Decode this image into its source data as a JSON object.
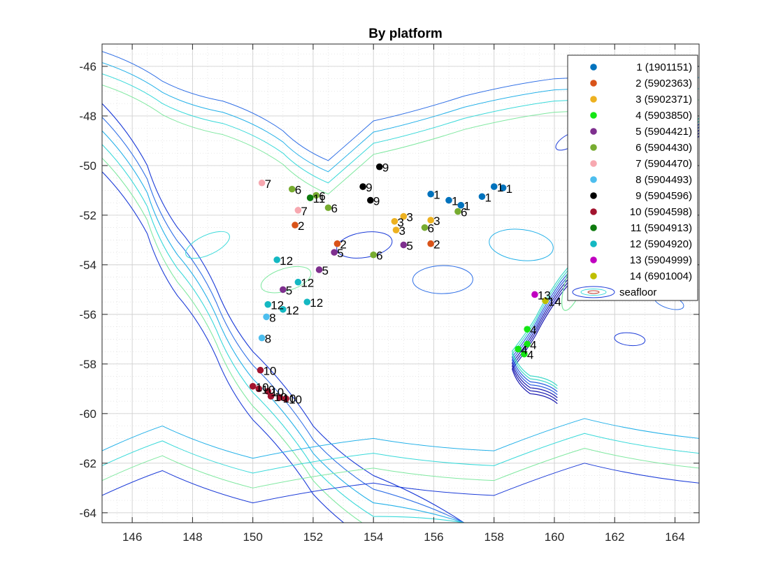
{
  "chart_data": {
    "type": "scatter",
    "title": "By platform",
    "xlabel": "",
    "ylabel": "",
    "xlim": [
      145,
      164.8
    ],
    "ylim": [
      -64.4,
      -45.1
    ],
    "xticks": [
      146,
      148,
      150,
      152,
      154,
      156,
      158,
      160,
      162,
      164
    ],
    "yticks": [
      -46,
      -48,
      -50,
      -52,
      -54,
      -56,
      -58,
      -60,
      -62,
      -64
    ],
    "grid": true,
    "minor_grid": true,
    "legend_position": "top-right",
    "legend_extra": "seafloor",
    "series": [
      {
        "name": "1 (1901151)",
        "label": "1",
        "color": "#0072BD",
        "points": [
          [
            155.9,
            -51.15
          ],
          [
            156.5,
            -51.4
          ],
          [
            156.9,
            -51.6
          ],
          [
            157.6,
            -51.25
          ],
          [
            158.0,
            -50.85
          ],
          [
            158.3,
            -50.9
          ]
        ]
      },
      {
        "name": "2 (5902363)",
        "label": "2",
        "color": "#D95319",
        "points": [
          [
            151.4,
            -52.4
          ],
          [
            152.8,
            -53.15
          ],
          [
            155.9,
            -53.15
          ]
        ]
      },
      {
        "name": "3 (5902371)",
        "label": "3",
        "color": "#EDB120",
        "points": [
          [
            154.7,
            -52.25
          ],
          [
            154.75,
            -52.6
          ],
          [
            155.0,
            -52.05
          ],
          [
            155.9,
            -52.2
          ]
        ]
      },
      {
        "name": "4 (5903850)",
        "label": "4",
        "color": "#14E614",
        "points": [
          [
            159.1,
            -56.6
          ],
          [
            159.1,
            -57.2
          ],
          [
            158.8,
            -57.4
          ],
          [
            159.0,
            -57.6
          ]
        ]
      },
      {
        "name": "5 (5904421)",
        "label": "5",
        "color": "#7E2F8E",
        "points": [
          [
            152.7,
            -53.5
          ],
          [
            155.0,
            -53.2
          ],
          [
            151.0,
            -55.0
          ],
          [
            152.2,
            -54.2
          ]
        ]
      },
      {
        "name": "6 (5904430)",
        "label": "6",
        "color": "#77AC30",
        "points": [
          [
            151.3,
            -50.95
          ],
          [
            152.1,
            -51.2
          ],
          [
            152.5,
            -51.7
          ],
          [
            155.7,
            -52.5
          ],
          [
            156.8,
            -51.85
          ],
          [
            154.0,
            -53.6
          ]
        ]
      },
      {
        "name": "7 (5904470)",
        "label": "7",
        "color": "#F7A8B0",
        "points": [
          [
            150.3,
            -50.7
          ],
          [
            151.5,
            -51.8
          ]
        ]
      },
      {
        "name": "8 (5904493)",
        "label": "8",
        "color": "#4DBEEE",
        "points": [
          [
            150.45,
            -56.1
          ],
          [
            150.3,
            -56.95
          ]
        ]
      },
      {
        "name": "9 (5904596)",
        "label": "9",
        "color": "#000000",
        "points": [
          [
            154.2,
            -50.05
          ],
          [
            153.65,
            -50.85
          ],
          [
            153.9,
            -51.4
          ]
        ]
      },
      {
        "name": "10 (5904598)",
        "label": "10",
        "color": "#A2142F",
        "points": [
          [
            150.25,
            -58.25
          ],
          [
            150.0,
            -58.9
          ],
          [
            150.2,
            -59.0
          ],
          [
            150.5,
            -59.1
          ],
          [
            150.6,
            -59.3
          ],
          [
            150.9,
            -59.35
          ],
          [
            151.1,
            -59.4
          ]
        ]
      },
      {
        "name": "11 (5904913)",
        "label": "11",
        "color": "#0E7A0E",
        "points": [
          [
            151.9,
            -51.3
          ]
        ]
      },
      {
        "name": "12 (5904920)",
        "label": "12",
        "color": "#14B8C2",
        "points": [
          [
            150.8,
            -53.8
          ],
          [
            151.5,
            -54.7
          ],
          [
            150.5,
            -55.6
          ],
          [
            151.0,
            -55.8
          ],
          [
            151.8,
            -55.5
          ]
        ]
      },
      {
        "name": "13 (5904999)",
        "label": "13",
        "color": "#C000C0",
        "points": [
          [
            159.35,
            -55.2
          ]
        ]
      },
      {
        "name": "14 (6901004)",
        "label": "14",
        "color": "#BFBF00",
        "points": [
          [
            159.7,
            -55.45
          ]
        ]
      }
    ]
  }
}
